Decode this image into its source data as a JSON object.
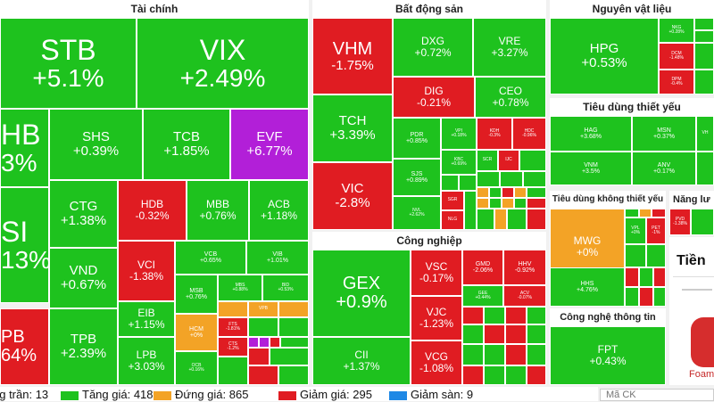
{
  "sectors": {
    "tai_chinh": "Tài chính",
    "bds": "Bất động sản",
    "cong_nghiep": "Công nghiệp",
    "nguyen_vat_lieu": "Nguyên vật liệu",
    "tieu_dung_thiet_yeu": "Tiêu dùng thiết yếu",
    "tieu_dung_khong_thiet_yeu": "Tiêu dùng không thiết yếu",
    "cong_nghe": "Công nghệ thông tin",
    "nang_luong": "Năng lư"
  },
  "stocks": {
    "STB": {
      "t": "STB",
      "v": "+5.1%"
    },
    "VIX": {
      "t": "VIX",
      "v": "+2.49%"
    },
    "HB": {
      "t": "HB",
      "v": "3%"
    },
    "SHS": {
      "t": "SHS",
      "v": "+0.39%"
    },
    "TCB": {
      "t": "TCB",
      "v": "+1.85%"
    },
    "EVF": {
      "t": "EVF",
      "v": "+6.77%"
    },
    "SI": {
      "t": "SI",
      "v": "13%"
    },
    "CTG": {
      "t": "CTG",
      "v": "+1.38%"
    },
    "HDB": {
      "t": "HDB",
      "v": "-0.32%"
    },
    "MBB": {
      "t": "MBB",
      "v": "+0.76%"
    },
    "ACB": {
      "t": "ACB",
      "v": "+1.18%"
    },
    "VND": {
      "t": "VND",
      "v": "+0.67%"
    },
    "VCI": {
      "t": "VCI",
      "v": "-1.38%"
    },
    "VCB": {
      "t": "VCB",
      "v": "+0.65%"
    },
    "VIB": {
      "t": "VIB",
      "v": "+1.01%"
    },
    "PB": {
      "t": "PB",
      "v": "64%"
    },
    "TPB": {
      "t": "TPB",
      "v": "+2.39%"
    },
    "EIB": {
      "t": "EIB",
      "v": "+1.15%"
    },
    "MSB": {
      "t": "MSB",
      "v": "+0.76%"
    },
    "MBS": {
      "t": "MBS",
      "v": "+0.88%"
    },
    "BID": {
      "t": "BID",
      "v": "+0.53%"
    },
    "HCM": {
      "t": "HCM",
      "v": "+0%"
    },
    "LPB": {
      "t": "LPB",
      "v": "+3.03%"
    },
    "FTS": {
      "t": "FTS",
      "v": "-1.81%"
    },
    "CTS": {
      "t": "CTS",
      "v": "-1.2%"
    },
    "OCB": {
      "t": "OCB",
      "v": "+0.16%"
    },
    "VPB": {
      "t": "VPB",
      "v": "+0.78%"
    },
    "VHM": {
      "t": "VHM",
      "v": "-1.75%"
    },
    "DXG": {
      "t": "DXG",
      "v": "+0.72%"
    },
    "VRE": {
      "t": "VRE",
      "v": "+3.27%"
    },
    "DIG": {
      "t": "DIG",
      "v": "-0.21%"
    },
    "CEO": {
      "t": "CEO",
      "v": "+0.78%"
    },
    "TCH": {
      "t": "TCH",
      "v": "+3.39%"
    },
    "PDR": {
      "t": "PDR",
      "v": "+0.85%"
    },
    "VPI": {
      "t": "VPI",
      "v": "+0.18%"
    },
    "KDH": {
      "t": "KDH",
      "v": "-0.3%"
    },
    "HDC": {
      "t": "HDC",
      "v": "-0.96%"
    },
    "VIC": {
      "t": "VIC",
      "v": "-2.8%"
    },
    "SJS": {
      "t": "SJS",
      "v": "+0.89%"
    },
    "KBC": {
      "t": "KBC",
      "v": "+0.69%"
    },
    "SCR": {
      "t": "SCR",
      "v": "+0.52%"
    },
    "IJC": {
      "t": "IJC",
      "v": "-1.76%"
    },
    "NVL": {
      "t": "NVL",
      "v": "+2.62%"
    },
    "SGR": {
      "t": "SGR",
      "v": "-2.83%"
    },
    "NLG": {
      "t": "NLG",
      "v": "-0.1%"
    },
    "GEX": {
      "t": "GEX",
      "v": "+0.9%"
    },
    "VSC": {
      "t": "VSC",
      "v": "-0.17%"
    },
    "GMD": {
      "t": "GMD",
      "v": "-2.06%"
    },
    "HHV": {
      "t": "HHV",
      "v": "-0.92%"
    },
    "GEE": {
      "t": "GEE",
      "v": "+0.44%"
    },
    "ACV": {
      "t": "ACV",
      "v": "-0.07%"
    },
    "VJC": {
      "t": "VJC",
      "v": "-1.23%"
    },
    "CII": {
      "t": "CII",
      "v": "+1.37%"
    },
    "VCG": {
      "t": "VCG",
      "v": "-1.08%"
    },
    "HPG": {
      "t": "HPG",
      "v": "+0.53%"
    },
    "NKG": {
      "t": "NKG",
      "v": "+0.28%"
    },
    "DCM": {
      "t": "DCM",
      "v": "-1.48%"
    },
    "DPM": {
      "t": "DPM",
      "v": "-0.4%"
    },
    "HAG": {
      "t": "HAG",
      "v": "+3.68%"
    },
    "MSN": {
      "t": "MSN",
      "v": "+0.37%"
    },
    "VNM": {
      "t": "VNM",
      "v": "+3.5%"
    },
    "ANV": {
      "t": "ANV",
      "v": "+0.17%"
    },
    "MWG": {
      "t": "MWG",
      "v": "+0%"
    },
    "VPL": {
      "t": "VPL",
      "v": "+0%"
    },
    "PET": {
      "t": "PET",
      "v": "-1%"
    },
    "HHS": {
      "t": "HHS",
      "v": "+4.76%"
    },
    "FPT": {
      "t": "FPT",
      "v": "+0.43%"
    },
    "PVD": {
      "t": "PVD",
      "v": "-1.38%"
    },
    "VH": {
      "t": "VH",
      "v": ""
    }
  },
  "legend": {
    "tran": "ng trần: 13",
    "tang": "Tăng giá: 418",
    "dung": "Đứng giá: 865",
    "giam": "Giảm giá: 295",
    "san": "Giảm sàn: 9"
  },
  "search": {
    "placeholder": "Mã CK"
  },
  "ad": {
    "tien": "Tiền",
    "foam": "Foam"
  },
  "colors": {
    "up": "#1ec21e",
    "down": "#e01c22",
    "flat": "#f3a326",
    "ceiling": "#b21fd8",
    "floor": "#1e88e5"
  }
}
